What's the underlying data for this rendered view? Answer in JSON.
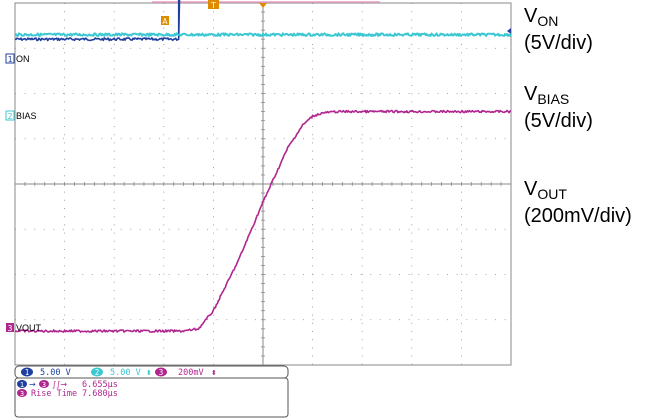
{
  "chart_data": {
    "type": "line",
    "title": "",
    "xlabel": "",
    "ylabel": "",
    "grid": true,
    "divisions": {
      "x": 10,
      "y": 8
    },
    "x_range_div": [
      0,
      10
    ],
    "series": [
      {
        "name": "ON",
        "channel": "1",
        "color": "#1f3f9f",
        "x_div": [
          0,
          3.3,
          3.3,
          3.32,
          10
        ],
        "y_div": [
          7.2,
          7.2,
          7.2,
          8.3,
          8.3
        ]
      },
      {
        "name": "BIAS",
        "channel": "2",
        "color": "#3cc8d2",
        "x_div": [
          0,
          10
        ],
        "y_div": [
          7.3,
          7.3
        ]
      },
      {
        "name": "VOUT",
        "channel": "3",
        "color": "#b0268f",
        "x_div": [
          0,
          3.4,
          3.7,
          4.0,
          4.5,
          5.0,
          5.5,
          5.8,
          6.0,
          6.2,
          6.5,
          10
        ],
        "y_div": [
          0.75,
          0.75,
          0.8,
          1.2,
          2.3,
          3.6,
          4.8,
          5.3,
          5.5,
          5.57,
          5.6,
          5.6
        ]
      }
    ]
  },
  "markers": {
    "trigger": "T",
    "cursor": "A"
  },
  "trace_labels": {
    "ch1": {
      "num": "1",
      "text": "ON"
    },
    "ch2": {
      "num": "2",
      "text": "BIAS"
    },
    "ch3": {
      "num": "3",
      "text": "VOUT"
    }
  },
  "status_bar": {
    "ch1_num": "1",
    "ch1_scale": "5.00 V",
    "ch2_num": "2",
    "ch2_scale": "5.00 V",
    "ch2_bw": "⬍",
    "ch3_num": "3",
    "ch3_scale": "200mV",
    "ch3_bw": "⬍"
  },
  "measurements": [
    {
      "num_a": "1",
      "arrow": "→",
      "num_b": "3",
      "edges": "∫∫→",
      "value": "6.655µs"
    },
    {
      "num_a": "3",
      "label": "Rise Time",
      "value": "7.680µs"
    }
  ],
  "annotations": {
    "on": {
      "prefix": "V",
      "sub": "ON",
      "scale": "(5V/div)"
    },
    "bias": {
      "prefix": "V",
      "sub": "BIAS",
      "scale": "(5V/div)"
    },
    "out": {
      "prefix": "V",
      "sub": "OUT",
      "scale": "(200mV/div)"
    }
  },
  "colors": {
    "ch1": "#1f3f9f",
    "ch2": "#3cc8d2",
    "ch3": "#b0268f",
    "grid": "#8a8a8a",
    "marker": "#e08a00"
  }
}
